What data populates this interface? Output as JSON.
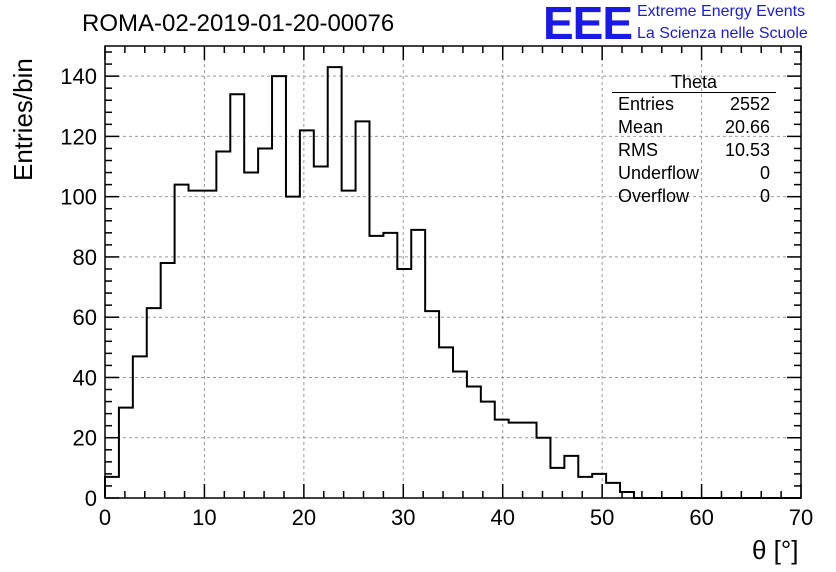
{
  "chart_data": {
    "type": "bar",
    "title": "ROMA-02-2019-01-20-00076",
    "xlabel": "θ [°]",
    "ylabel": "Entries/bin",
    "xlim": [
      0,
      70
    ],
    "ylim": [
      0,
      150
    ],
    "xticks": [
      0,
      10,
      20,
      30,
      40,
      50,
      60,
      70
    ],
    "yticks": [
      0,
      20,
      40,
      60,
      80,
      100,
      120,
      140
    ],
    "grid": true,
    "bin_width": 1.4,
    "bin_start": 0,
    "values": [
      7,
      30,
      47,
      63,
      78,
      104,
      102,
      102,
      115,
      134,
      108,
      116,
      140,
      100,
      122,
      110,
      143,
      102,
      125,
      87,
      88,
      76,
      89,
      62,
      50,
      42,
      37,
      32,
      26,
      25,
      25,
      20,
      10,
      14,
      7,
      8,
      5,
      2,
      0,
      0,
      0,
      0,
      0,
      0,
      0,
      0,
      0,
      0,
      0,
      0
    ],
    "stats_box": {
      "title": "Theta",
      "rows": [
        {
          "label": "Entries",
          "value": "2552"
        },
        {
          "label": "Mean",
          "value": "20.66"
        },
        {
          "label": "RMS",
          "value": "10.53"
        },
        {
          "label": "Underflow",
          "value": "0"
        },
        {
          "label": "Overflow",
          "value": "0"
        }
      ]
    }
  },
  "logo": {
    "mark": "EEE",
    "line1": "Extreme Energy Events",
    "line2": "La Scienza nelle Scuole",
    "color": "#1a1ae6"
  }
}
